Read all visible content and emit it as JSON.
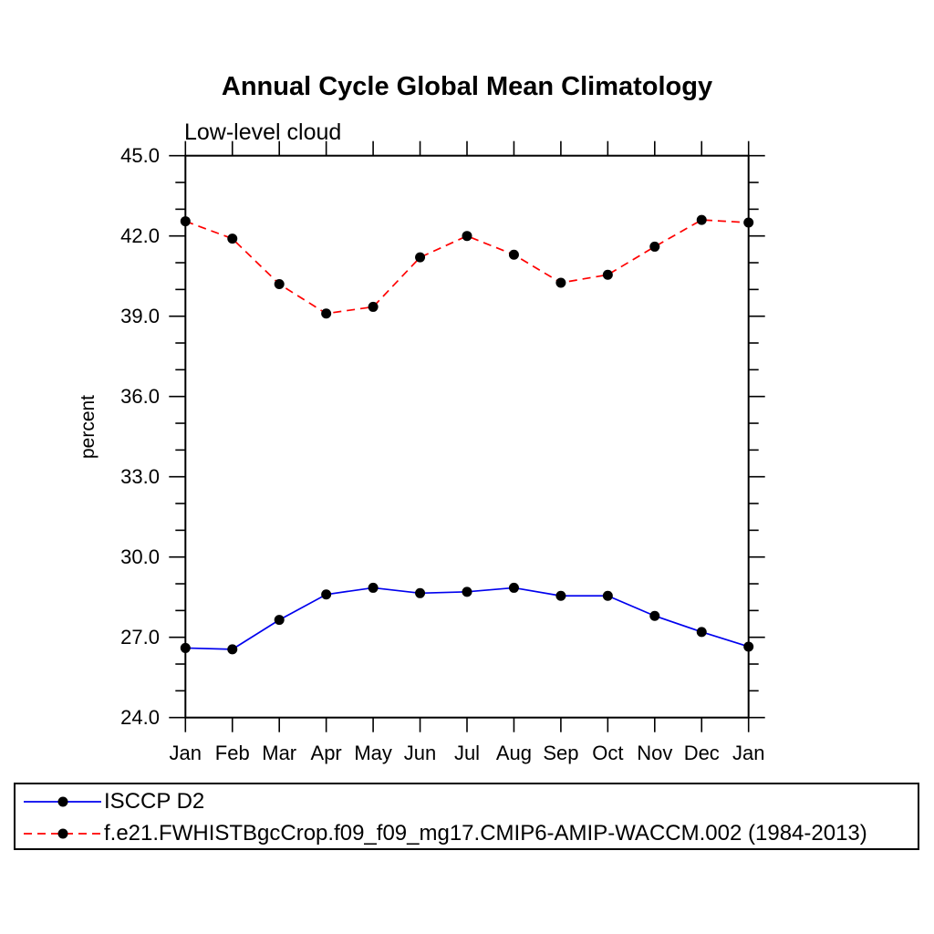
{
  "chart_data": {
    "type": "line",
    "title": "Annual Cycle Global Mean Climatology",
    "subtitle": "Low-level cloud",
    "ylabel": "percent",
    "xlabel": "",
    "categories": [
      "Jan",
      "Feb",
      "Mar",
      "Apr",
      "May",
      "Jun",
      "Jul",
      "Aug",
      "Sep",
      "Oct",
      "Nov",
      "Dec",
      "Jan"
    ],
    "ylim": [
      24.0,
      45.0
    ],
    "y_major_tick_labels": [
      "45.0",
      "42.0",
      "39.0",
      "36.0",
      "33.0",
      "30.0",
      "27.0",
      "24.0"
    ],
    "y_major_step": 3.0,
    "y_minor_step": 1.0,
    "grid": "off",
    "legend_position": "bottom-left-box",
    "marker_color": "#000000",
    "series": [
      {
        "name": "ISCCP D2",
        "color": "#0000ee",
        "line_style": "solid",
        "marker": "filled-circle",
        "values": [
          26.6,
          26.55,
          27.65,
          28.6,
          28.85,
          28.65,
          28.7,
          28.85,
          28.55,
          28.55,
          27.8,
          27.2,
          26.65
        ]
      },
      {
        "name": "f.e21.FWHISTBgcCrop.f09_f09_mg17.CMIP6-AMIP-WACCM.002 (1984-2013)",
        "color": "#ff0000",
        "line_style": "dashed",
        "marker": "filled-circle",
        "values": [
          42.55,
          41.9,
          40.2,
          39.1,
          39.35,
          41.2,
          42.0,
          41.3,
          40.25,
          40.55,
          41.6,
          42.6,
          42.5
        ]
      }
    ]
  }
}
